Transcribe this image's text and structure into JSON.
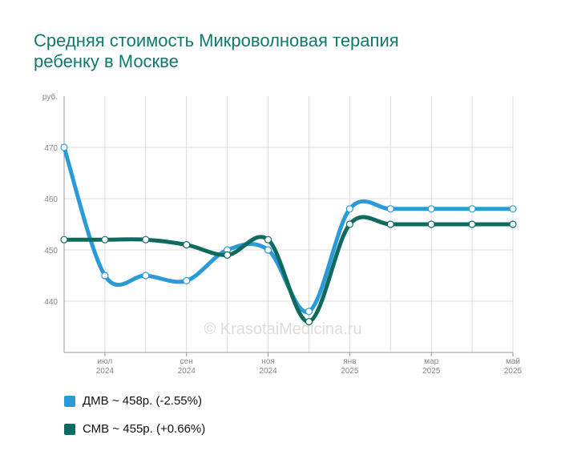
{
  "header": {
    "title_line1": "Средняя стоимость Микроволновая терапия",
    "title_line2": "ребенку в Москве"
  },
  "watermark": "© KrasotaiMedicina.ru",
  "chart_data": {
    "type": "line",
    "ylabel": "руб.",
    "ylim": [
      430,
      480
    ],
    "yticks": [
      440,
      450,
      460,
      470
    ],
    "grid": true,
    "x": [
      "2024-06",
      "2024-07",
      "2024-08",
      "2024-09",
      "2024-10",
      "2024-11",
      "2024-12",
      "2025-01",
      "2025-02",
      "2025-03",
      "2025-04",
      "2025-05"
    ],
    "xtick_labels": [
      {
        "month": "июл",
        "year": "2024",
        "index": 1
      },
      {
        "month": "сен",
        "year": "2024",
        "index": 3
      },
      {
        "month": "ноя",
        "year": "2024",
        "index": 5
      },
      {
        "month": "янв",
        "year": "2025",
        "index": 7
      },
      {
        "month": "мар",
        "year": "2025",
        "index": 9
      },
      {
        "month": "май",
        "year": "2025",
        "index": 11
      }
    ],
    "series": [
      {
        "name": "ДМВ",
        "color": "#2a9ad8",
        "values": [
          470,
          445,
          445,
          444,
          450,
          450,
          438,
          458,
          458,
          458,
          458,
          458
        ]
      },
      {
        "name": "СМВ",
        "color": "#0f6b5f",
        "values": [
          452,
          452,
          452,
          451,
          449,
          452,
          436,
          455,
          455,
          455,
          455,
          455
        ]
      }
    ],
    "legend_position": "bottom-left",
    "legend": [
      {
        "label": "ДМВ ~ 458р. (-2.55%)",
        "color": "#2a9ad8"
      },
      {
        "label": "СМВ ~ 455р. (+0.66%)",
        "color": "#0f6b5f"
      }
    ]
  }
}
